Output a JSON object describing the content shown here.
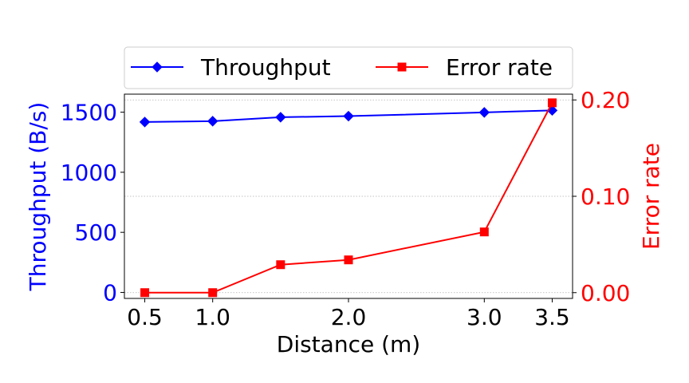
{
  "chart_data": {
    "type": "line",
    "x": [
      0.5,
      1.0,
      1.5,
      2.0,
      3.0,
      3.5
    ],
    "xlabel": "Distance (m)",
    "xticks": [
      0.5,
      1.0,
      2.0,
      3.0,
      3.5
    ],
    "xtick_labels": [
      "0.5",
      "1.0",
      "2.0",
      "3.0",
      "3.5"
    ],
    "xlim": [
      0.35,
      3.65
    ],
    "y_left": {
      "label": "Throughput (B/s)",
      "color": "#0000ff",
      "ylim": [
        -50,
        1650
      ],
      "ticks": [
        0,
        500,
        1000,
        1500
      ],
      "tick_labels": [
        "0",
        "500",
        "1000",
        "1500"
      ]
    },
    "y_right": {
      "label": "Error rate",
      "color": "#ff0000",
      "ylim": [
        -0.006,
        0.206
      ],
      "ticks": [
        0.0,
        0.1,
        0.2
      ],
      "tick_labels": [
        "0.00",
        "0.10",
        "0.20"
      ]
    },
    "series": [
      {
        "name": "Throughput",
        "axis": "left",
        "color": "#0000ff",
        "marker": "diamond",
        "values": [
          1418,
          1425,
          1458,
          1467,
          1498,
          1515
        ]
      },
      {
        "name": "Error rate",
        "axis": "right",
        "color": "#ff0000",
        "marker": "square",
        "values": [
          0.0,
          0.0,
          0.029,
          0.034,
          0.063,
          0.197
        ]
      }
    ],
    "grid": "horizontal-dotted",
    "legend": "top"
  }
}
